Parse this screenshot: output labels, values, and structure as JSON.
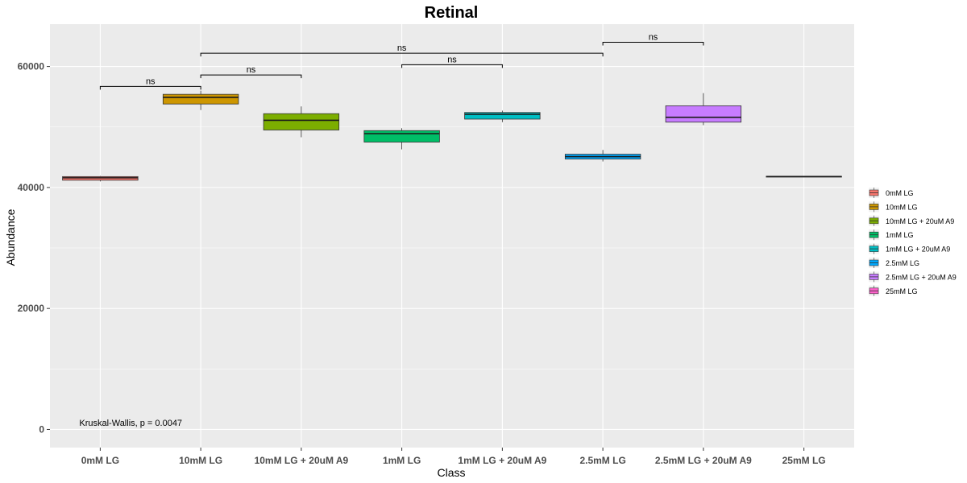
{
  "chart_data": {
    "type": "box",
    "title": "Retinal",
    "xlabel": "Class",
    "ylabel": "Abundance",
    "ylim": [
      -3000,
      67000
    ],
    "yticks": [
      0,
      20000,
      40000,
      60000
    ],
    "ytick_labels": [
      "0",
      "20000",
      "40000",
      "60000"
    ],
    "grid": true,
    "legend_position": "right",
    "categories": [
      "0mM LG",
      "10mM LG",
      "10mM LG + 20uM A9",
      "1mM LG",
      "1mM LG + 20uM A9",
      "2.5mM LG",
      "2.5mM LG + 20uM A9",
      "25mM LG"
    ],
    "boxes": [
      {
        "name": "0mM LG",
        "min": 41000,
        "q1": 41200,
        "median": 41600,
        "q3": 41800,
        "max": 41900,
        "color": "#F8766D"
      },
      {
        "name": "10mM LG",
        "min": 52800,
        "q1": 53800,
        "median": 54900,
        "q3": 55400,
        "max": 56000,
        "color": "#CD9600"
      },
      {
        "name": "10mM LG + 20uM A9",
        "min": 48300,
        "q1": 49500,
        "median": 51100,
        "q3": 52200,
        "max": 53400,
        "color": "#7CAE00"
      },
      {
        "name": "1mM LG",
        "min": 46300,
        "q1": 47500,
        "median": 48900,
        "q3": 49400,
        "max": 49800,
        "color": "#00BE67"
      },
      {
        "name": "1mM LG + 20uM A9",
        "min": 50800,
        "q1": 51300,
        "median": 52100,
        "q3": 52400,
        "max": 52700,
        "color": "#00BFC4"
      },
      {
        "name": "2.5mM LG",
        "min": 44300,
        "q1": 44700,
        "median": 45100,
        "q3": 45500,
        "max": 46200,
        "color": "#00A9FF"
      },
      {
        "name": "2.5mM LG + 20uM A9",
        "min": 50300,
        "q1": 50800,
        "median": 51600,
        "q3": 53500,
        "max": 55600,
        "color": "#C77CFF"
      },
      {
        "name": "25mM LG",
        "min": 41800,
        "q1": 41800,
        "median": 41800,
        "q3": 41850,
        "max": 41900,
        "color": "#FF61CC"
      }
    ],
    "significance": [
      {
        "from": 0,
        "to": 1,
        "y": 56700,
        "label": "ns"
      },
      {
        "from": 1,
        "to": 2,
        "y": 58600,
        "label": "ns"
      },
      {
        "from": 1,
        "to": 5,
        "y": 62200,
        "label": "ns"
      },
      {
        "from": 3,
        "to": 4,
        "y": 60300,
        "label": "ns"
      },
      {
        "from": 5,
        "to": 6,
        "y": 64000,
        "label": "ns"
      }
    ],
    "annotation": {
      "text": "Kruskal-Wallis, p = 0.0047",
      "x_category": 0,
      "y": 600
    },
    "legend": [
      "0mM LG",
      "10mM LG",
      "10mM LG + 20uM A9",
      "1mM LG",
      "1mM LG + 20uM A9",
      "2.5mM LG",
      "2.5mM LG + 20uM A9",
      "25mM LG"
    ]
  }
}
